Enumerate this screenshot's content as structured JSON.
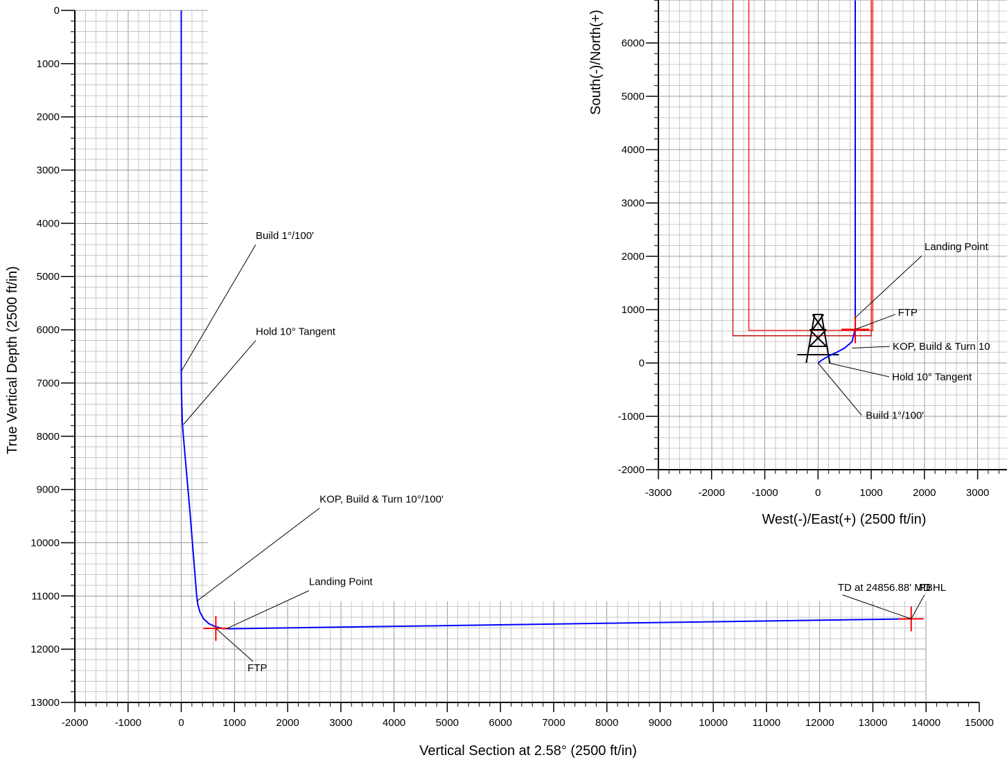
{
  "colors": {
    "grid_minor": "#c8c8c8",
    "grid_major": "#9a9a9a",
    "wellpath": "#0000ff",
    "target": "#ff0000",
    "lease_line": "#c00000",
    "setback_line": "#ff0000",
    "axis": "#000000"
  },
  "icons": {
    "rig": "drilling-rig-icon"
  },
  "chart_data": [
    {
      "id": "vertical_section",
      "type": "line",
      "title": "",
      "xlabel": "Vertical Section at 2.58° (2500 ft/in)",
      "ylabel": "True Vertical Depth (2500 ft/in)",
      "xlim": [
        -2000,
        15000
      ],
      "ylim": [
        13000,
        0
      ],
      "x_ticks": [
        -2000,
        -1000,
        0,
        1000,
        2000,
        3000,
        4000,
        5000,
        6000,
        7000,
        8000,
        9000,
        10000,
        11000,
        12000,
        13000,
        14000,
        15000
      ],
      "x_tick_labels": [
        "-2000",
        "-1000",
        "0",
        "1000",
        "2000",
        "3000",
        "4000",
        "5000",
        "6000",
        "7000",
        "8000",
        "9000",
        "10000",
        "11000",
        "12000",
        "13000",
        "14000",
        "15000"
      ],
      "y_ticks": [
        0,
        1000,
        2000,
        3000,
        4000,
        5000,
        6000,
        7000,
        8000,
        9000,
        10000,
        11000,
        12000,
        13000
      ],
      "y_tick_labels": [
        "0",
        "1000",
        "2000",
        "3000",
        "4000",
        "5000",
        "6000",
        "7000",
        "8000",
        "9000",
        "10000",
        "11000",
        "12000",
        "13000"
      ],
      "grid": true,
      "series": [
        {
          "x": [
            0,
            0,
            0,
            5,
            20,
            40,
            170,
            250,
            290,
            310,
            350,
            420,
            520,
            650,
            780,
            900,
            13720
          ],
          "y": [
            0,
            4000,
            6780,
            7200,
            7750,
            8000,
            9500,
            10500,
            11000,
            11150,
            11300,
            11430,
            11520,
            11580,
            11610,
            11615,
            11430
          ]
        }
      ],
      "markers": [
        {
          "label": "FTP",
          "x": 650,
          "y": 11610
        },
        {
          "label": "PBHL",
          "x": 13720,
          "y": 11430
        }
      ],
      "annotations": [
        {
          "text": "Build  1°/100'",
          "x": 0,
          "y": 6780,
          "label_x": 1400,
          "label_y": 4400
        },
        {
          "text": "Hold  10°  Tangent",
          "x": 40,
          "y": 7780,
          "label_x": 1400,
          "label_y": 6200
        },
        {
          "text": "KOP,  Build  &  Turn  10°/100'",
          "x": 290,
          "y": 11100,
          "label_x": 2600,
          "label_y": 9350
        },
        {
          "text": "Landing  Point",
          "x": 850,
          "y": 11615,
          "label_x": 2400,
          "label_y": 10900
        },
        {
          "text": "FTP",
          "x": 650,
          "y": 11610,
          "label_x": 1350,
          "label_y": 12230
        },
        {
          "text": "TD at 24856.88' MD",
          "x": 13720,
          "y": 11430,
          "label_x": 12430,
          "label_y": 10980
        },
        {
          "text": "PBHL",
          "x": 13720,
          "y": 11430,
          "label_x": 13970,
          "label_y": 10980
        }
      ]
    },
    {
      "id": "plan_view",
      "type": "line",
      "title": "",
      "xlabel": "West(-)/East(+)  (2500  ft/in)",
      "ylabel": "South(-)/North(+)",
      "xlim": [
        -3000,
        3500
      ],
      "ylim": [
        -2000,
        6800
      ],
      "x_ticks": [
        -3000,
        -2000,
        -1000,
        0,
        1000,
        2000,
        3000
      ],
      "x_tick_labels": [
        "-3000",
        "-2000",
        "-1000",
        "0",
        "1000",
        "2000",
        "3000"
      ],
      "y_ticks": [
        -2000,
        -1000,
        0,
        1000,
        2000,
        3000,
        4000,
        5000,
        6000
      ],
      "y_tick_labels": [
        "-2000",
        "-1000",
        "0",
        "1000",
        "2000",
        "3000",
        "4000",
        "5000",
        "6000"
      ],
      "grid": true,
      "series": [
        {
          "x": [
            0,
            80,
            200,
            350,
            500,
            640,
            680,
            690,
            700,
            700,
            700
          ],
          "y": [
            0,
            60,
            130,
            200,
            280,
            400,
            560,
            620,
            640,
            3000,
            6800
          ]
        }
      ],
      "boundaries": [
        {
          "x": [
            -1600,
            -1600,
            1000,
            1000
          ],
          "y": [
            6800,
            510,
            510,
            6800
          ]
        },
        {
          "x": [
            -1300,
            -1300,
            1030,
            1030
          ],
          "y": [
            6800,
            610,
            610,
            6800
          ]
        }
      ],
      "markers": [
        {
          "label": "FTP",
          "x": 700,
          "y": 630
        }
      ],
      "annotations": [
        {
          "text": "Landing  Point",
          "x": 690,
          "y": 840,
          "label_x": 1950,
          "label_y": 2010
        },
        {
          "text": "FTP",
          "x": 700,
          "y": 630,
          "label_x": 1450,
          "label_y": 910
        },
        {
          "text": "KOP,  Build  &  Turn  10",
          "x": 640,
          "y": 280,
          "label_x": 1350,
          "label_y": 310
        },
        {
          "text": "Hold  10°  Tangent",
          "x": 200,
          "y": 0,
          "label_x": 1340,
          "label_y": -260
        },
        {
          "text": "Build  1°/100'",
          "x": 0,
          "y": 0,
          "label_x": 820,
          "label_y": -980
        }
      ]
    }
  ]
}
